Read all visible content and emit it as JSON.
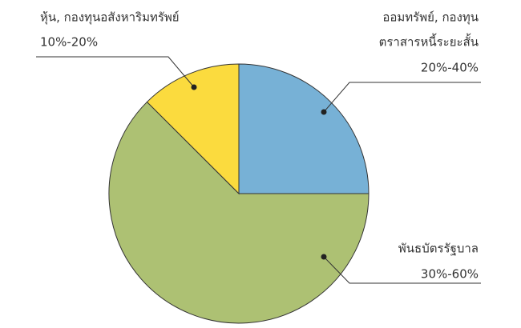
{
  "chart_data": {
    "type": "pie",
    "categories": [
      [
        "ออมทรัพย์, กองทุน",
        "ตราสารหนี้ระยะสั้น"
      ],
      [
        "พันธบัตรรัฐบาล"
      ],
      [
        "หุ้น, กองทุนอสังหาริมทรัพย์"
      ]
    ],
    "ranges": [
      "20%-40%",
      "30%-60%",
      "10%-20%"
    ],
    "values": [
      25,
      62.5,
      12.5
    ],
    "colors": [
      "#77b1d6",
      "#adc173",
      "#fbdb3e"
    ]
  }
}
